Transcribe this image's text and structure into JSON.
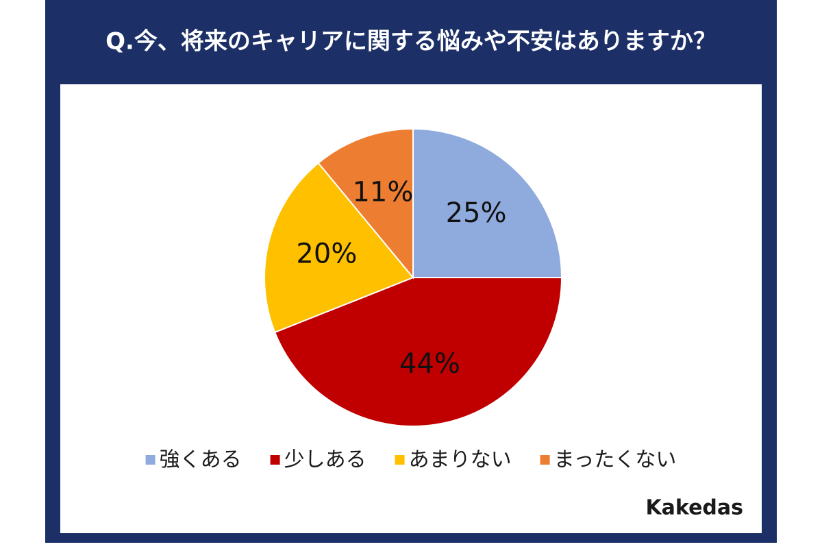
{
  "chart_data": {
    "type": "pie",
    "title": "Q.今、将来のキャリアに関する悩みや不安はありますか？",
    "categories": [
      "強くある",
      "少しある",
      "あまりない",
      "まったくない"
    ],
    "values": [
      25,
      44,
      20,
      11
    ],
    "value_labels": [
      "25%",
      "44%",
      "20%",
      "11%"
    ],
    "colors": [
      "#8faadc",
      "#c00000",
      "#ffc000",
      "#ed7d31"
    ],
    "legend": "bottom",
    "brand": "Kakedas"
  }
}
